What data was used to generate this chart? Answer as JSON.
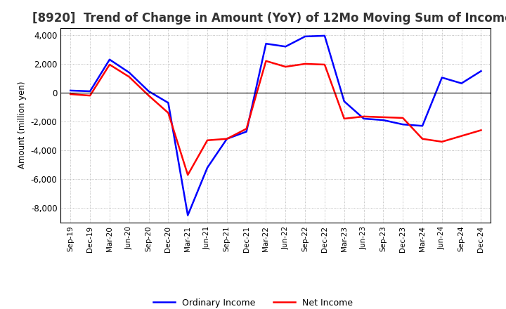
{
  "title": "[8920]  Trend of Change in Amount (YoY) of 12Mo Moving Sum of Incomes",
  "ylabel": "Amount (million yen)",
  "ylim": [
    -9000,
    4500
  ],
  "yticks": [
    -8000,
    -6000,
    -4000,
    -2000,
    0,
    2000,
    4000
  ],
  "legend_labels": [
    "Ordinary Income",
    "Net Income"
  ],
  "line_colors": [
    "blue",
    "red"
  ],
  "x_labels": [
    "Sep-19",
    "Dec-19",
    "Mar-20",
    "Jun-20",
    "Sep-20",
    "Dec-20",
    "Mar-21",
    "Jun-21",
    "Sep-21",
    "Dec-21",
    "Mar-22",
    "Jun-22",
    "Sep-22",
    "Dec-22",
    "Mar-23",
    "Jun-23",
    "Sep-23",
    "Dec-23",
    "Mar-24",
    "Jun-24",
    "Sep-24",
    "Dec-24"
  ],
  "ordinary_income": [
    150,
    100,
    2300,
    1400,
    100,
    -700,
    -8500,
    -5200,
    -3200,
    -2700,
    3400,
    3200,
    3900,
    3950,
    -600,
    -1800,
    -1900,
    -2200,
    -2300,
    1050,
    650,
    1500
  ],
  "net_income": [
    -100,
    -200,
    1950,
    1100,
    -200,
    -1400,
    -5700,
    -3300,
    -3200,
    -2500,
    2200,
    1800,
    2000,
    1950,
    -1800,
    -1650,
    -1700,
    -1750,
    -3200,
    -3400,
    -3000,
    -2600
  ],
  "background_color": "#ffffff",
  "grid_color": "#aaaaaa",
  "title_color": "#333333",
  "title_fontsize": 12
}
